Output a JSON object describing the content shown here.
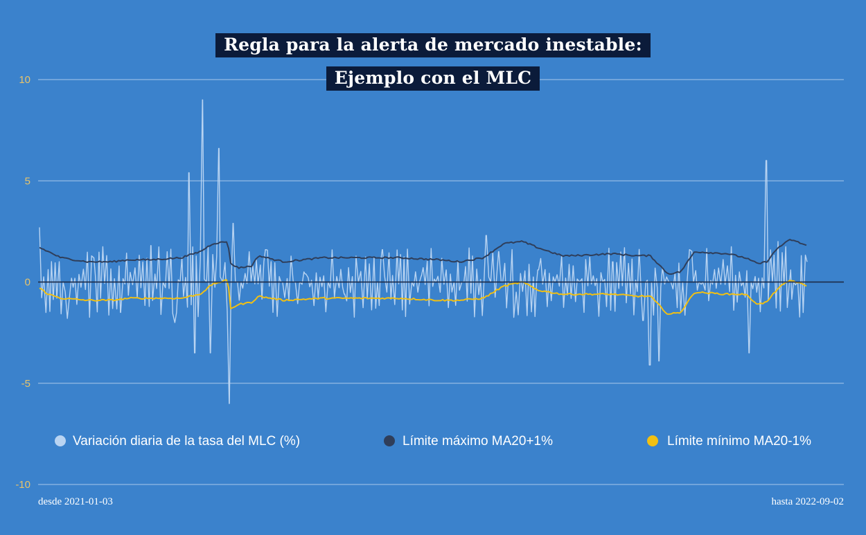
{
  "chart_data": {
    "type": "line",
    "title": [
      "Regla para la alerta de mercado inestable:",
      "Ejemplo con el MLC"
    ],
    "ylim": [
      -10,
      10
    ],
    "yticks": [
      10,
      5,
      0,
      -5,
      -10
    ],
    "grid": true,
    "legend_position": "bottom",
    "x_start_label": "desde 2021-01-03",
    "x_end_label": "hasta 2022-09-02",
    "x_range": [
      "2021-01-03",
      "2022-09-02"
    ],
    "series": [
      {
        "name": "Variación diaria de la tasa del MLC (%)",
        "color": "#b9d4f2",
        "style": "volatile",
        "x": [
          "2021-01-03",
          "2021-01-25",
          "2021-02-15",
          "2021-03-08",
          "2021-04-01",
          "2021-04-20",
          "2021-05-01",
          "2021-05-06",
          "2021-05-12",
          "2021-05-18",
          "2021-05-25",
          "2021-06-02",
          "2021-06-05",
          "2021-06-10",
          "2021-07-01",
          "2021-08-01",
          "2021-09-01",
          "2021-10-01",
          "2021-11-01",
          "2021-12-01",
          "2021-12-22",
          "2022-01-01",
          "2022-01-15",
          "2022-02-01",
          "2022-03-01",
          "2022-04-01",
          "2022-04-25",
          "2022-05-01",
          "2022-05-08",
          "2022-06-01",
          "2022-07-01",
          "2022-07-18",
          "2022-08-01",
          "2022-08-10",
          "2022-08-20",
          "2022-09-02"
        ],
        "values": [
          2.7,
          -1.8,
          1.2,
          -1.5,
          1.8,
          -2.0,
          5.4,
          -3.5,
          9.0,
          -3.5,
          6.6,
          -6.0,
          2.9,
          -0.9,
          1.6,
          0.4,
          -0.6,
          1.6,
          0.3,
          -0.4,
          2.3,
          1.5,
          -0.5,
          0.6,
          0.8,
          1.0,
          -1.9,
          -4.1,
          -3.9,
          1.6,
          0.8,
          -3.5,
          6.0,
          2.0,
          0.6,
          1.0
        ]
      },
      {
        "name": "Límite máximo MA20+1%",
        "color": "#2f3e5a",
        "x": [
          "2021-01-03",
          "2021-01-10",
          "2021-01-20",
          "2021-02-10",
          "2021-03-01",
          "2021-03-15",
          "2021-04-01",
          "2021-04-25",
          "2021-05-10",
          "2021-05-20",
          "2021-06-01",
          "2021-06-03",
          "2021-06-10",
          "2021-06-20",
          "2021-06-25",
          "2021-07-15",
          "2021-08-15",
          "2021-09-15",
          "2021-10-15",
          "2021-11-15",
          "2021-12-01",
          "2021-12-20",
          "2022-01-05",
          "2022-01-20",
          "2022-02-01",
          "2022-02-20",
          "2022-03-01",
          "2022-04-01",
          "2022-04-20",
          "2022-05-01",
          "2022-05-15",
          "2022-05-25",
          "2022-06-05",
          "2022-07-01",
          "2022-07-15",
          "2022-07-25",
          "2022-08-01",
          "2022-08-10",
          "2022-08-20",
          "2022-09-02"
        ],
        "values": [
          1.7,
          1.5,
          1.2,
          1.0,
          1.0,
          1.1,
          1.1,
          1.2,
          1.5,
          1.9,
          2.0,
          0.9,
          0.7,
          0.8,
          1.3,
          1.0,
          1.2,
          1.2,
          1.2,
          1.1,
          1.0,
          1.2,
          1.9,
          2.0,
          1.7,
          1.3,
          1.3,
          1.4,
          1.3,
          1.3,
          0.4,
          0.5,
          1.5,
          1.4,
          1.2,
          0.9,
          1.0,
          1.7,
          2.1,
          1.8
        ]
      },
      {
        "name": "Límite mínimo MA20-1%",
        "color": "#f2c012",
        "x": [
          "2021-01-03",
          "2021-01-10",
          "2021-01-20",
          "2021-02-10",
          "2021-03-01",
          "2021-03-15",
          "2021-04-01",
          "2021-04-25",
          "2021-05-10",
          "2021-05-20",
          "2021-06-01",
          "2021-06-03",
          "2021-06-10",
          "2021-06-20",
          "2021-06-25",
          "2021-07-15",
          "2021-08-15",
          "2021-09-15",
          "2021-10-15",
          "2021-11-15",
          "2021-12-01",
          "2021-12-20",
          "2022-01-05",
          "2022-01-20",
          "2022-02-01",
          "2022-02-20",
          "2022-03-01",
          "2022-04-01",
          "2022-04-20",
          "2022-05-01",
          "2022-05-15",
          "2022-05-25",
          "2022-06-05",
          "2022-07-01",
          "2022-07-15",
          "2022-07-25",
          "2022-08-01",
          "2022-08-10",
          "2022-08-20",
          "2022-09-02"
        ],
        "values": [
          -0.3,
          -0.6,
          -0.8,
          -0.9,
          -0.9,
          -0.8,
          -0.8,
          -0.8,
          -0.6,
          -0.1,
          0.1,
          -1.3,
          -1.1,
          -1.0,
          -0.7,
          -0.9,
          -0.8,
          -0.8,
          -0.8,
          -0.9,
          -0.9,
          -0.8,
          -0.2,
          0.0,
          -0.4,
          -0.6,
          -0.6,
          -0.6,
          -0.7,
          -0.7,
          -1.6,
          -1.5,
          -0.5,
          -0.6,
          -0.6,
          -1.1,
          -1.0,
          -0.3,
          0.1,
          -0.2
        ]
      }
    ]
  }
}
